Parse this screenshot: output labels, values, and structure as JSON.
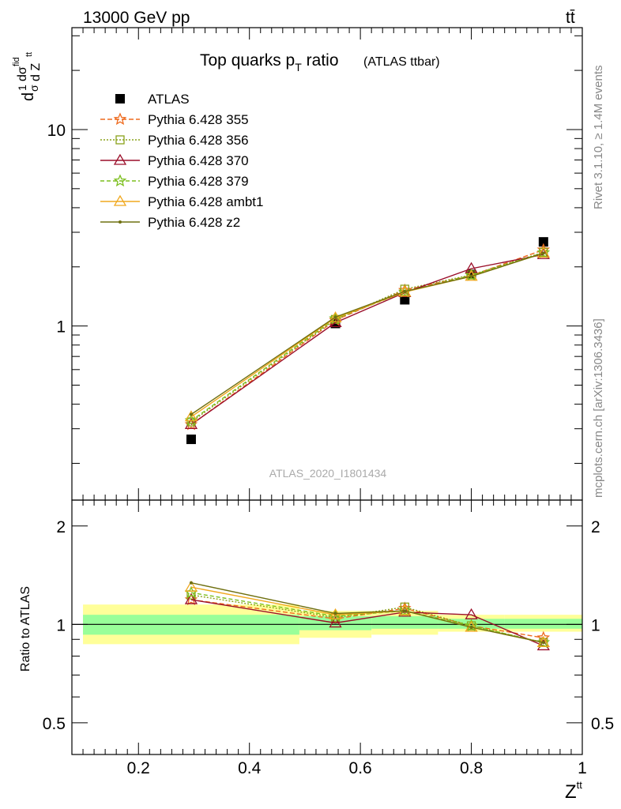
{
  "header": {
    "energy_label": "13000 GeV pp",
    "process_label": "tt̄"
  },
  "chart_data": [
    {
      "type": "line",
      "panel": "main",
      "title": "Top quarks p_T ratio",
      "title_main": "Top quarks p",
      "title_sub": "T",
      "title_rest": " ratio",
      "title_suffix": "(ATLAS ttbar)",
      "ylabel": "1/σ dσ^fid/dZ^tt",
      "ylabel_parts": {
        "d1": "d",
        "one": "1",
        "sigma": "σ",
        "dsig": "dσ",
        "fid": "fid",
        "dZ": "d Z",
        "tt": "tt"
      },
      "yscale": "log",
      "ylim": [
        0.13,
        33
      ],
      "y_ticks": [
        {
          "value": 1,
          "label": "1"
        },
        {
          "value": 10,
          "label": "10"
        }
      ],
      "analysis_label": "ATLAS_2020_I1801434",
      "legend_position": "top-left",
      "x": [
        0.295,
        0.555,
        0.68,
        0.8,
        0.93
      ],
      "x_bin_edges": [
        0.1,
        0.49,
        0.62,
        0.74,
        0.86,
        1.0
      ],
      "series": [
        {
          "name": "ATLAS",
          "color": "#000000",
          "marker": "square",
          "dash": "none",
          "values": [
            0.265,
            1.03,
            1.36,
            1.83,
            2.68
          ]
        },
        {
          "name": "Pythia 6.428 355",
          "color": "#ee6a1e",
          "marker": "star",
          "dash": "6,3",
          "values": [
            0.315,
            1.07,
            1.52,
            1.81,
            2.44
          ]
        },
        {
          "name": "Pythia 6.428 356",
          "color": "#8aa21a",
          "marker": "open-square",
          "dash": "2,2",
          "values": [
            0.325,
            1.08,
            1.54,
            1.82,
            2.37
          ]
        },
        {
          "name": "Pythia 6.428 370",
          "color": "#9b0f2a",
          "marker": "open-triangle",
          "dash": "none",
          "values": [
            0.315,
            1.04,
            1.48,
            1.96,
            2.31
          ]
        },
        {
          "name": "Pythia 6.428 379",
          "color": "#7cbf1e",
          "marker": "star",
          "dash": "5,3",
          "values": [
            0.33,
            1.09,
            1.49,
            1.81,
            2.36
          ]
        },
        {
          "name": "Pythia 6.428 ambt1",
          "color": "#f0a81e",
          "marker": "open-triangle",
          "dash": "none",
          "values": [
            0.345,
            1.1,
            1.49,
            1.79,
            2.35
          ]
        },
        {
          "name": "Pythia 6.428 z2",
          "color": "#6f7010",
          "marker": "dot",
          "dash": "none",
          "values": [
            0.355,
            1.11,
            1.5,
            1.79,
            2.35
          ]
        }
      ]
    },
    {
      "type": "line",
      "panel": "ratio",
      "ylabel": "Ratio to ATLAS",
      "xlabel": "Z",
      "xlabel_sup": "tt",
      "xlim": [
        0.08,
        1.0
      ],
      "ylim": [
        0.4,
        2.4
      ],
      "yscale": "log",
      "x_ticks": [
        {
          "value": 0.2,
          "label": "0.2"
        },
        {
          "value": 0.4,
          "label": "0.4"
        },
        {
          "value": 0.6,
          "label": "0.6"
        },
        {
          "value": 0.8,
          "label": "0.8"
        },
        {
          "value": 1.0,
          "label": "1"
        }
      ],
      "y_ticks": [
        {
          "value": 0.5,
          "label": "0.5"
        },
        {
          "value": 1,
          "label": "1"
        },
        {
          "value": 2,
          "label": "2"
        }
      ],
      "bands": [
        {
          "x": [
            0.1,
            0.49
          ],
          "green": [
            0.93,
            1.07
          ],
          "yellow": [
            0.87,
            1.15
          ]
        },
        {
          "x": [
            0.49,
            0.62
          ],
          "green": [
            0.96,
            1.06
          ],
          "yellow": [
            0.91,
            1.1
          ]
        },
        {
          "x": [
            0.62,
            0.74
          ],
          "green": [
            0.97,
            1.06
          ],
          "yellow": [
            0.93,
            1.1
          ]
        },
        {
          "x": [
            0.74,
            0.86
          ],
          "green": [
            0.97,
            1.04
          ],
          "yellow": [
            0.95,
            1.07
          ]
        },
        {
          "x": [
            0.86,
            1.0
          ],
          "green": [
            0.97,
            1.04
          ],
          "yellow": [
            0.95,
            1.07
          ]
        }
      ],
      "x": [
        0.295,
        0.555,
        0.68,
        0.8,
        0.93
      ],
      "series": [
        {
          "name": "Pythia 6.428 355",
          "values": [
            1.19,
            1.04,
            1.12,
            0.99,
            0.91
          ]
        },
        {
          "name": "Pythia 6.428 356",
          "values": [
            1.23,
            1.05,
            1.13,
            0.99,
            0.88
          ]
        },
        {
          "name": "Pythia 6.428 370",
          "values": [
            1.19,
            1.01,
            1.09,
            1.07,
            0.86
          ]
        },
        {
          "name": "Pythia 6.428 379",
          "values": [
            1.25,
            1.06,
            1.1,
            0.99,
            0.88
          ]
        },
        {
          "name": "Pythia 6.428 ambt1",
          "values": [
            1.3,
            1.07,
            1.1,
            0.98,
            0.88
          ]
        },
        {
          "name": "Pythia 6.428 z2",
          "values": [
            1.34,
            1.08,
            1.1,
            0.98,
            0.88
          ]
        }
      ]
    }
  ],
  "side_labels": {
    "rivet": "Rivet 3.1.10, ≥ 1.4M events",
    "mcplots": "mcplots.cern.ch [arXiv:1306.3436]"
  }
}
